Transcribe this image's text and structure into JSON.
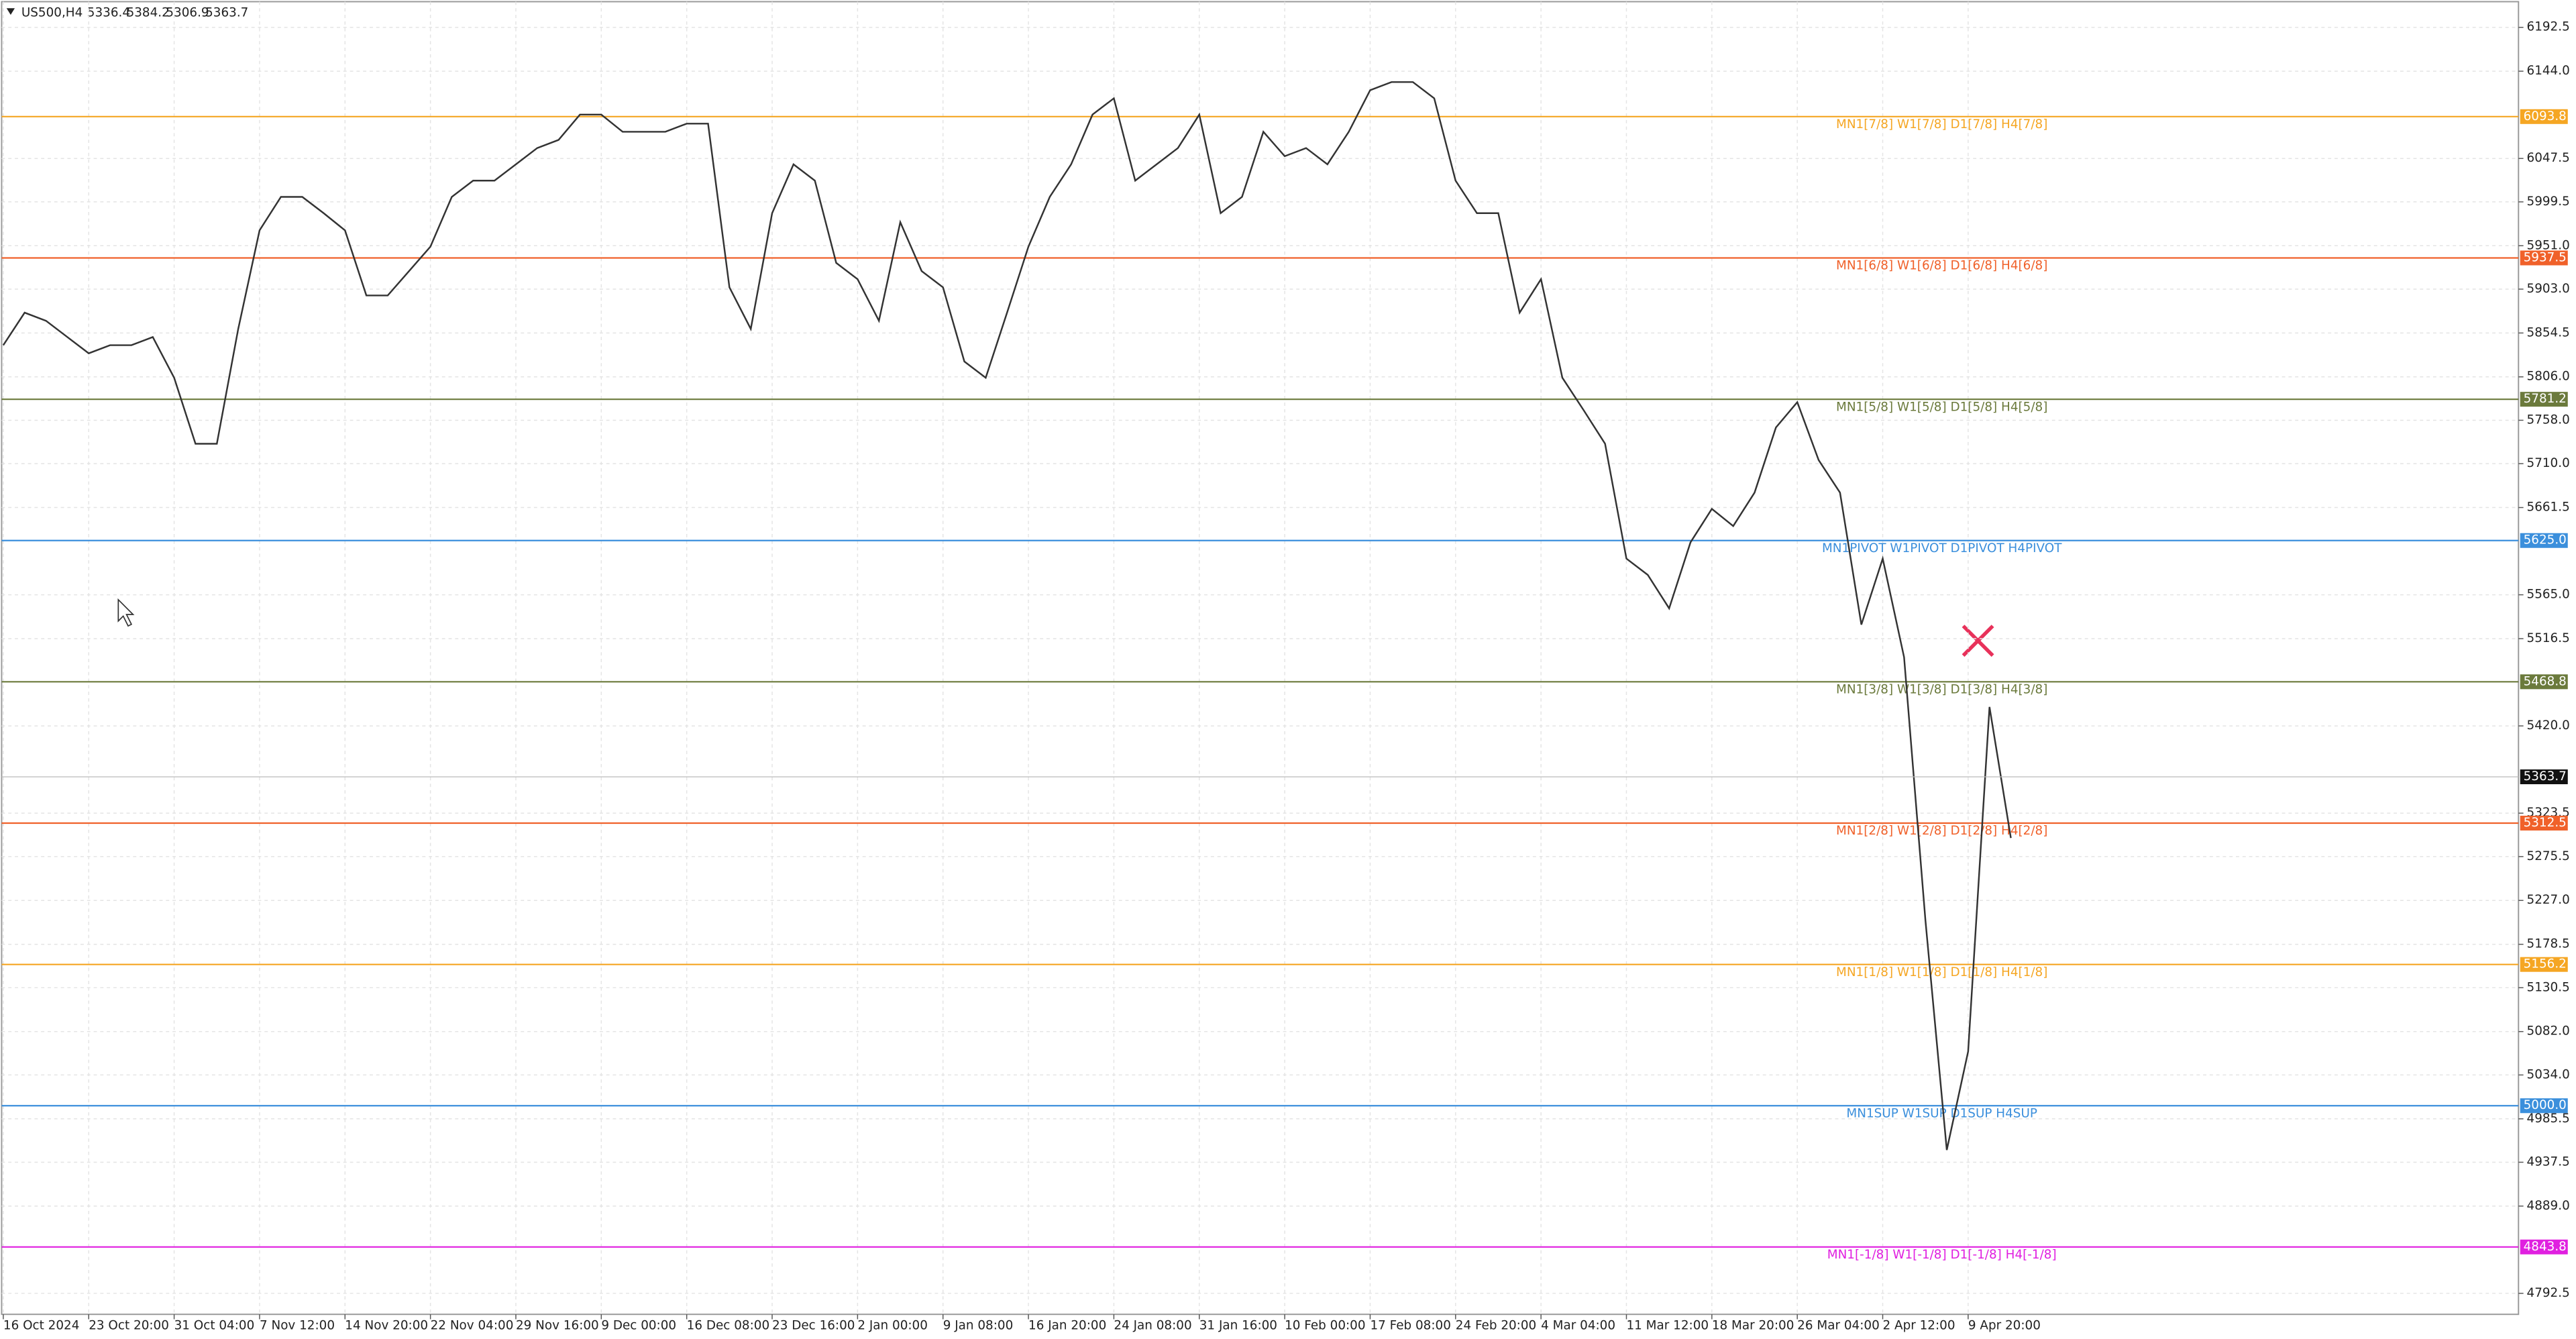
{
  "chart_data": {
    "type": "line",
    "symbol": "US500,H4",
    "ohlc": [
      5336.4,
      5384.2,
      5306.9,
      5363.7
    ],
    "categories": [
      "16 Oct 2024",
      null,
      null,
      null,
      "23 Oct 20:00",
      null,
      null,
      null,
      "31 Oct 04:00",
      null,
      null,
      null,
      "7 Nov 12:00",
      null,
      null,
      null,
      "14 Nov 20:00",
      null,
      null,
      null,
      "22 Nov 04:00",
      null,
      null,
      null,
      "29 Nov 16:00",
      null,
      null,
      null,
      "9 Dec 00:00",
      null,
      null,
      null,
      "16 Dec 08:00",
      null,
      null,
      null,
      "23 Dec 16:00",
      null,
      null,
      null,
      "2 Jan 00:00",
      null,
      null,
      null,
      "9 Jan 08:00",
      null,
      null,
      null,
      "16 Jan 20:00",
      null,
      null,
      null,
      "24 Jan 08:00",
      null,
      null,
      null,
      "31 Jan 16:00",
      null,
      null,
      null,
      "10 Feb 00:00",
      null,
      null,
      null,
      "17 Feb 08:00",
      null,
      null,
      null,
      "24 Feb 20:00",
      null,
      null,
      null,
      "4 Mar 04:00",
      null,
      null,
      null,
      "11 Mar 12:00",
      null,
      null,
      null,
      "18 Mar 20:00",
      null,
      null,
      null,
      "26 Mar 04:00",
      null,
      null,
      null,
      "2 Apr 12:00",
      null,
      null,
      null,
      "9 Apr 20:00",
      null,
      null
    ],
    "values": [
      5841,
      5877,
      5868,
      5850,
      5832,
      5841,
      5841,
      5850,
      5805,
      5732,
      5732,
      5859,
      5968,
      6005,
      6005,
      5987,
      5968,
      5896,
      5896,
      5923,
      5950,
      6005,
      6023,
      6023,
      6041,
      6059,
      6068,
      6096,
      6096,
      6077,
      6077,
      6077,
      6086,
      6086,
      5905,
      5859,
      5987,
      6041,
      6023,
      5932,
      5914,
      5868,
      5977,
      5923,
      5905,
      5823,
      5805,
      5877,
      5950,
      6005,
      6041,
      6096,
      6114,
      6023,
      6041,
      6059,
      6096,
      5987,
      6005,
      6077,
      6050,
      6059,
      6041,
      6077,
      6123,
      6132,
      6132,
      6114,
      6023,
      5987,
      5987,
      5877,
      5914,
      5805,
      5769,
      5732,
      5605,
      5587,
      5550,
      5623,
      5660,
      5641,
      5678,
      5750,
      5778,
      5714,
      5678,
      5532,
      5605,
      5496,
      5205,
      4951,
      5060,
      5441,
      5296
    ],
    "color": "#333333",
    "ylim": [
      4769.3,
      6222.7
    ],
    "yticks": [
      6192.5,
      {
        "value": 6144,
        "label": "6144.0"
      },
      6047.5,
      5999.5,
      {
        "value": 5951,
        "label": "5951.0"
      },
      {
        "value": 5903,
        "label": "5903.0"
      },
      5854.5,
      {
        "value": 5806,
        "label": "5806.0"
      },
      {
        "value": 5758,
        "label": "5758.0"
      },
      {
        "value": 5710,
        "label": "5710.0"
      },
      5661.5,
      {
        "value": 5565,
        "label": "5565.0"
      },
      5516.5,
      {
        "value": 5420,
        "label": "5420.0"
      },
      5323.5,
      5275.5,
      {
        "value": 5227,
        "label": "5227.0"
      },
      5178.5,
      5130.5,
      {
        "value": 5082,
        "label": "5082.0"
      },
      {
        "value": 5034,
        "label": "5034.0"
      },
      4985.5,
      4937.5,
      {
        "value": 4889,
        "label": "4889.0"
      },
      4792.5
    ],
    "grid": true,
    "levels": [
      {
        "value": 6093.8,
        "label": "6093.8",
        "name": "MN1[7/8] W1[7/8] D1[7/8] H4[7/8]",
        "color": "#f5a623"
      },
      {
        "value": 5937.5,
        "label": "5937.5",
        "name": "MN1[6/8] W1[6/8] D1[6/8] H4[6/8]",
        "color": "#f0612a"
      },
      {
        "value": 5781.2,
        "label": "5781.2",
        "name": "MN1[5/8] W1[5/8] D1[5/8] H4[5/8]",
        "color": "#6b7a3c"
      },
      {
        "value": 5625,
        "label": "5625.0",
        "name": "MN1PIVOT W1PIVOT D1PIVOT H4PIVOT",
        "color": "#3b8fdc"
      },
      {
        "value": 5468.8,
        "label": "5468.8",
        "name": "MN1[3/8] W1[3/8] D1[3/8] H4[3/8]",
        "color": "#6b7a3c"
      },
      {
        "value": 5312.5,
        "label": "5312.5",
        "name": "MN1[2/8] W1[2/8] D1[2/8] H4[2/8]",
        "color": "#f0612a"
      },
      {
        "value": 5156.2,
        "label": "5156.2",
        "name": "MN1[1/8] W1[1/8] D1[1/8] H4[1/8]",
        "color": "#f5a623"
      },
      {
        "value": 5000,
        "label": "5000.0",
        "name": "MN1SUP W1SUP D1SUP H4SUP",
        "color": "#3b8fdc"
      },
      {
        "value": 4843.8,
        "label": "4843.8",
        "name": "MN1[-1/8] W1[-1/8] D1[-1/8] H4[-1/8]",
        "color": "#e020e0"
      }
    ]
  }
}
